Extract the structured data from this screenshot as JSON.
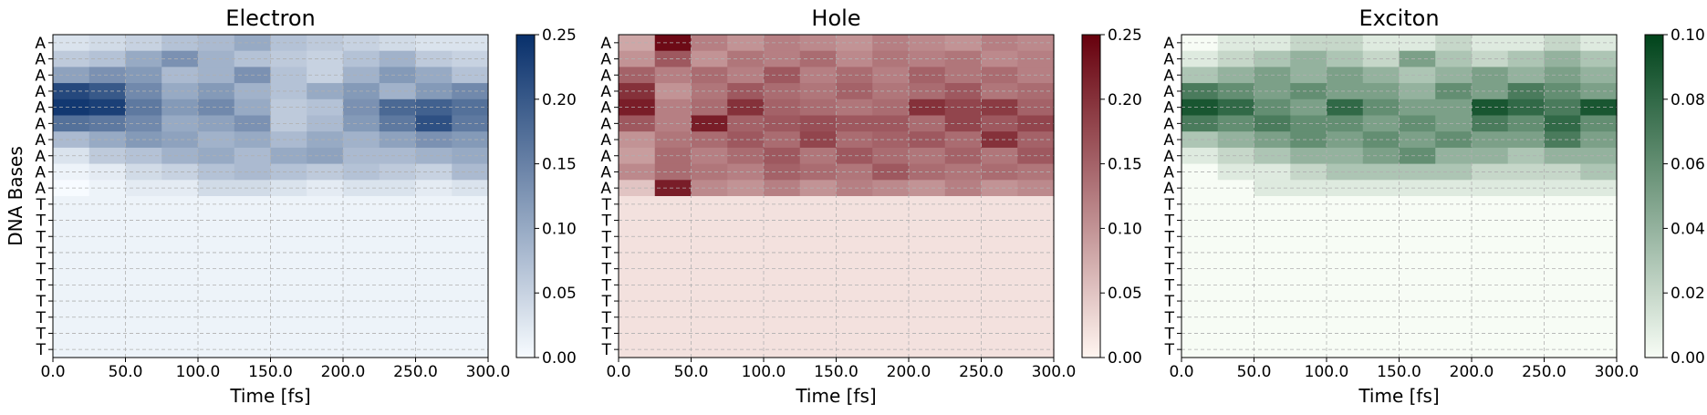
{
  "chart_data": [
    {
      "type": "heatmap",
      "title": "Electron",
      "xlabel": "Time [fs]",
      "ylabel": "DNA Bases",
      "xlim": [
        0,
        300
      ],
      "xticks": [
        "0.0",
        "50.0",
        "100.0",
        "150.0",
        "200.0",
        "250.0",
        "300.0"
      ],
      "yticklabels": [
        "A",
        "A",
        "A",
        "A",
        "A",
        "A",
        "A",
        "A",
        "A",
        "A",
        "T",
        "T",
        "T",
        "T",
        "T",
        "T",
        "T",
        "T",
        "T",
        "T"
      ],
      "colormap": "Blues",
      "cmap_low": "#f7fbff",
      "cmap_high": "#08306b",
      "clim": [
        0,
        0.25
      ],
      "colorbar_ticks": [
        "0.00",
        "0.05",
        "0.10",
        "0.15",
        "0.20",
        "0.25"
      ],
      "grid": true,
      "rows": [
        [
          0.03,
          0.04,
          0.05,
          0.07,
          0.08,
          0.1,
          0.07,
          0.06,
          0.05,
          0.04,
          0.03,
          0.03
        ],
        [
          0.06,
          0.07,
          0.1,
          0.13,
          0.09,
          0.07,
          0.06,
          0.05,
          0.07,
          0.09,
          0.06,
          0.05
        ],
        [
          0.11,
          0.13,
          0.12,
          0.08,
          0.09,
          0.13,
          0.07,
          0.05,
          0.09,
          0.12,
          0.1,
          0.07
        ],
        [
          0.22,
          0.2,
          0.14,
          0.1,
          0.12,
          0.09,
          0.07,
          0.1,
          0.12,
          0.09,
          0.12,
          0.14
        ],
        [
          0.24,
          0.23,
          0.16,
          0.12,
          0.14,
          0.1,
          0.06,
          0.07,
          0.13,
          0.18,
          0.19,
          0.17
        ],
        [
          0.17,
          0.16,
          0.14,
          0.1,
          0.11,
          0.13,
          0.06,
          0.08,
          0.12,
          0.16,
          0.21,
          0.16
        ],
        [
          0.08,
          0.1,
          0.12,
          0.11,
          0.09,
          0.1,
          0.08,
          0.1,
          0.09,
          0.11,
          0.13,
          0.12
        ],
        [
          0.03,
          0.06,
          0.07,
          0.09,
          0.1,
          0.08,
          0.1,
          0.11,
          0.08,
          0.08,
          0.09,
          0.1
        ],
        [
          0.01,
          0.02,
          0.04,
          0.05,
          0.07,
          0.08,
          0.07,
          0.06,
          0.07,
          0.06,
          0.05,
          0.08
        ],
        [
          0.0,
          0.01,
          0.02,
          0.02,
          0.04,
          0.04,
          0.03,
          0.02,
          0.03,
          0.03,
          0.02,
          0.03
        ],
        [
          0.01,
          0.01,
          0.01,
          0.01,
          0.01,
          0.01,
          0.01,
          0.01,
          0.01,
          0.01,
          0.01,
          0.01
        ],
        [
          0.01,
          0.01,
          0.01,
          0.01,
          0.01,
          0.01,
          0.01,
          0.01,
          0.01,
          0.01,
          0.01,
          0.01
        ],
        [
          0.01,
          0.01,
          0.01,
          0.01,
          0.01,
          0.01,
          0.01,
          0.01,
          0.01,
          0.01,
          0.01,
          0.01
        ],
        [
          0.01,
          0.01,
          0.01,
          0.01,
          0.01,
          0.01,
          0.01,
          0.01,
          0.01,
          0.01,
          0.01,
          0.01
        ],
        [
          0.01,
          0.01,
          0.01,
          0.01,
          0.01,
          0.01,
          0.01,
          0.01,
          0.01,
          0.01,
          0.01,
          0.01
        ],
        [
          0.01,
          0.01,
          0.01,
          0.01,
          0.01,
          0.01,
          0.01,
          0.01,
          0.01,
          0.01,
          0.01,
          0.01
        ],
        [
          0.01,
          0.01,
          0.01,
          0.01,
          0.01,
          0.01,
          0.01,
          0.01,
          0.01,
          0.01,
          0.01,
          0.01
        ],
        [
          0.01,
          0.01,
          0.01,
          0.01,
          0.01,
          0.01,
          0.01,
          0.01,
          0.01,
          0.01,
          0.01,
          0.01
        ],
        [
          0.01,
          0.01,
          0.01,
          0.01,
          0.01,
          0.01,
          0.01,
          0.01,
          0.01,
          0.01,
          0.01,
          0.01
        ],
        [
          0.01,
          0.01,
          0.01,
          0.01,
          0.01,
          0.01,
          0.01,
          0.01,
          0.01,
          0.01,
          0.01,
          0.01
        ]
      ]
    },
    {
      "type": "heatmap",
      "title": "Hole",
      "xlabel": "Time [fs]",
      "ylabel": "",
      "xlim": [
        0,
        300
      ],
      "xticks": [
        "0.0",
        "50.0",
        "100.0",
        "150.0",
        "200.0",
        "250.0",
        "300.0"
      ],
      "yticklabels": [
        "A",
        "A",
        "A",
        "A",
        "A",
        "A",
        "A",
        "A",
        "A",
        "A",
        "T",
        "T",
        "T",
        "T",
        "T",
        "T",
        "T",
        "T",
        "T",
        "T"
      ],
      "colormap": "Reds",
      "cmap_low": "#fff5f0",
      "cmap_high": "#67000d",
      "clim": [
        0,
        0.25
      ],
      "colorbar_ticks": [
        "0.00",
        "0.05",
        "0.10",
        "0.15",
        "0.20",
        "0.25"
      ],
      "grid": true,
      "rows": [
        [
          0.08,
          0.24,
          0.12,
          0.1,
          0.12,
          0.11,
          0.1,
          0.12,
          0.11,
          0.1,
          0.12,
          0.11
        ],
        [
          0.1,
          0.16,
          0.1,
          0.13,
          0.12,
          0.14,
          0.11,
          0.13,
          0.12,
          0.13,
          0.11,
          0.12
        ],
        [
          0.15,
          0.12,
          0.14,
          0.12,
          0.16,
          0.12,
          0.14,
          0.12,
          0.15,
          0.13,
          0.14,
          0.12
        ],
        [
          0.2,
          0.1,
          0.13,
          0.16,
          0.14,
          0.13,
          0.15,
          0.13,
          0.14,
          0.16,
          0.13,
          0.14
        ],
        [
          0.22,
          0.12,
          0.14,
          0.2,
          0.15,
          0.14,
          0.13,
          0.14,
          0.2,
          0.18,
          0.19,
          0.15
        ],
        [
          0.16,
          0.12,
          0.22,
          0.15,
          0.16,
          0.17,
          0.16,
          0.16,
          0.14,
          0.18,
          0.16,
          0.18
        ],
        [
          0.1,
          0.13,
          0.14,
          0.16,
          0.14,
          0.18,
          0.14,
          0.15,
          0.16,
          0.14,
          0.2,
          0.15
        ],
        [
          0.09,
          0.14,
          0.12,
          0.14,
          0.16,
          0.13,
          0.16,
          0.14,
          0.13,
          0.15,
          0.13,
          0.16
        ],
        [
          0.11,
          0.14,
          0.13,
          0.12,
          0.15,
          0.14,
          0.13,
          0.16,
          0.14,
          0.13,
          0.14,
          0.13
        ],
        [
          0.05,
          0.22,
          0.11,
          0.1,
          0.12,
          0.1,
          0.12,
          0.11,
          0.1,
          0.12,
          0.1,
          0.11
        ],
        [
          0.02,
          0.02,
          0.02,
          0.02,
          0.02,
          0.02,
          0.02,
          0.02,
          0.02,
          0.02,
          0.02,
          0.02
        ],
        [
          0.02,
          0.02,
          0.02,
          0.02,
          0.02,
          0.02,
          0.02,
          0.02,
          0.02,
          0.02,
          0.02,
          0.02
        ],
        [
          0.02,
          0.02,
          0.02,
          0.02,
          0.02,
          0.02,
          0.02,
          0.02,
          0.02,
          0.02,
          0.02,
          0.02
        ],
        [
          0.02,
          0.02,
          0.02,
          0.02,
          0.02,
          0.02,
          0.02,
          0.02,
          0.02,
          0.02,
          0.02,
          0.02
        ],
        [
          0.02,
          0.02,
          0.02,
          0.02,
          0.02,
          0.02,
          0.02,
          0.02,
          0.02,
          0.02,
          0.02,
          0.02
        ],
        [
          0.02,
          0.02,
          0.02,
          0.02,
          0.02,
          0.02,
          0.02,
          0.02,
          0.02,
          0.02,
          0.02,
          0.02
        ],
        [
          0.02,
          0.02,
          0.02,
          0.02,
          0.02,
          0.02,
          0.02,
          0.02,
          0.02,
          0.02,
          0.02,
          0.02
        ],
        [
          0.02,
          0.02,
          0.02,
          0.02,
          0.02,
          0.02,
          0.02,
          0.02,
          0.02,
          0.02,
          0.02,
          0.02
        ],
        [
          0.02,
          0.02,
          0.02,
          0.02,
          0.02,
          0.02,
          0.02,
          0.02,
          0.02,
          0.02,
          0.02,
          0.02
        ],
        [
          0.02,
          0.02,
          0.02,
          0.02,
          0.02,
          0.02,
          0.02,
          0.02,
          0.02,
          0.02,
          0.02,
          0.02
        ]
      ]
    },
    {
      "type": "heatmap",
      "title": "Exciton",
      "xlabel": "Time [fs]",
      "ylabel": "",
      "xlim": [
        0,
        300
      ],
      "xticks": [
        "0.0",
        "50.0",
        "100.0",
        "150.0",
        "200.0",
        "250.0",
        "300.0"
      ],
      "yticklabels": [
        "A",
        "A",
        "A",
        "A",
        "A",
        "A",
        "A",
        "A",
        "A",
        "A",
        "T",
        "T",
        "T",
        "T",
        "T",
        "T",
        "T",
        "T",
        "T",
        "T"
      ],
      "colormap": "Greens",
      "cmap_low": "#f7fcf5",
      "cmap_high": "#00441b",
      "clim": [
        0,
        0.1
      ],
      "colorbar_ticks": [
        "0.00",
        "0.02",
        "0.04",
        "0.06",
        "0.08",
        "0.10"
      ],
      "grid": true,
      "rows": [
        [
          0.0,
          0.01,
          0.01,
          0.02,
          0.02,
          0.01,
          0.01,
          0.02,
          0.01,
          0.01,
          0.02,
          0.01
        ],
        [
          0.01,
          0.02,
          0.03,
          0.04,
          0.03,
          0.02,
          0.05,
          0.03,
          0.02,
          0.03,
          0.04,
          0.03
        ],
        [
          0.03,
          0.04,
          0.05,
          0.04,
          0.05,
          0.04,
          0.03,
          0.04,
          0.05,
          0.04,
          0.05,
          0.04
        ],
        [
          0.07,
          0.06,
          0.05,
          0.06,
          0.05,
          0.05,
          0.04,
          0.06,
          0.05,
          0.07,
          0.06,
          0.05
        ],
        [
          0.09,
          0.08,
          0.06,
          0.05,
          0.08,
          0.06,
          0.05,
          0.05,
          0.09,
          0.08,
          0.07,
          0.09
        ],
        [
          0.07,
          0.06,
          0.07,
          0.06,
          0.06,
          0.05,
          0.06,
          0.05,
          0.07,
          0.06,
          0.08,
          0.06
        ],
        [
          0.03,
          0.04,
          0.05,
          0.06,
          0.05,
          0.06,
          0.05,
          0.06,
          0.05,
          0.05,
          0.07,
          0.05
        ],
        [
          0.01,
          0.02,
          0.03,
          0.04,
          0.04,
          0.05,
          0.06,
          0.04,
          0.04,
          0.03,
          0.04,
          0.04
        ],
        [
          0.0,
          0.01,
          0.01,
          0.02,
          0.03,
          0.03,
          0.03,
          0.03,
          0.02,
          0.02,
          0.02,
          0.03
        ],
        [
          0.0,
          0.0,
          0.01,
          0.01,
          0.01,
          0.01,
          0.01,
          0.01,
          0.01,
          0.01,
          0.01,
          0.01
        ],
        [
          0.0,
          0.0,
          0.0,
          0.0,
          0.0,
          0.0,
          0.0,
          0.0,
          0.0,
          0.0,
          0.0,
          0.0
        ],
        [
          0.0,
          0.0,
          0.0,
          0.0,
          0.0,
          0.0,
          0.0,
          0.0,
          0.0,
          0.0,
          0.0,
          0.0
        ],
        [
          0.0,
          0.0,
          0.0,
          0.0,
          0.0,
          0.0,
          0.0,
          0.0,
          0.0,
          0.0,
          0.0,
          0.0
        ],
        [
          0.0,
          0.0,
          0.0,
          0.0,
          0.0,
          0.0,
          0.0,
          0.0,
          0.0,
          0.0,
          0.0,
          0.0
        ],
        [
          0.0,
          0.0,
          0.0,
          0.0,
          0.0,
          0.0,
          0.0,
          0.0,
          0.0,
          0.0,
          0.0,
          0.0
        ],
        [
          0.0,
          0.0,
          0.0,
          0.0,
          0.0,
          0.0,
          0.0,
          0.0,
          0.0,
          0.0,
          0.0,
          0.0
        ],
        [
          0.0,
          0.0,
          0.0,
          0.0,
          0.0,
          0.0,
          0.0,
          0.0,
          0.0,
          0.0,
          0.0,
          0.0
        ],
        [
          0.0,
          0.0,
          0.0,
          0.0,
          0.0,
          0.0,
          0.0,
          0.0,
          0.0,
          0.0,
          0.0,
          0.0
        ],
        [
          0.0,
          0.0,
          0.0,
          0.0,
          0.0,
          0.0,
          0.0,
          0.0,
          0.0,
          0.0,
          0.0,
          0.0
        ],
        [
          0.0,
          0.0,
          0.0,
          0.0,
          0.0,
          0.0,
          0.0,
          0.0,
          0.0,
          0.0,
          0.0,
          0.0
        ]
      ]
    }
  ]
}
